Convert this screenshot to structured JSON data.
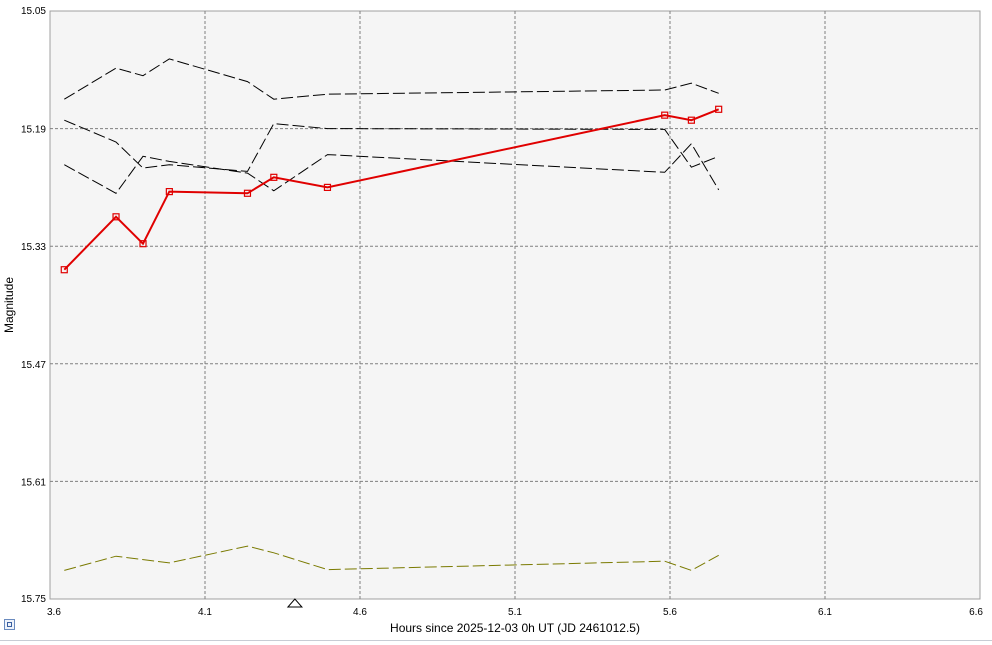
{
  "chart_data": {
    "type": "line",
    "xlabel": "Hours since 2025-12-03 0h UT (JD 2461012.5)",
    "ylabel": "Magnitude",
    "xlim": [
      3.6,
      6.6
    ],
    "ylim": [
      15.05,
      15.75
    ],
    "y_inverted": true,
    "x_ticks": [
      "3.6",
      "4.1",
      "4.6",
      "5.1",
      "5.6",
      "6.1",
      "6.6"
    ],
    "y_ticks": [
      "15.05",
      "15.19",
      "15.33",
      "15.47",
      "15.61",
      "15.75"
    ],
    "grid": true,
    "marker_x": 4.39,
    "colors": {
      "target": "#e00000",
      "comparison": "#000000",
      "check": "#7a7a00",
      "background": "#f5f5f5",
      "grid": "#808080"
    },
    "series": [
      {
        "style": "target",
        "x": [
          3.646,
          3.813,
          3.9,
          3.985,
          4.237,
          4.322,
          4.495,
          5.583,
          5.669,
          5.757
        ],
        "y": [
          15.358,
          15.295,
          15.327,
          15.265,
          15.267,
          15.248,
          15.26,
          15.174,
          15.18,
          15.167
        ]
      },
      {
        "style": "comparison",
        "x": [
          3.646,
          3.813,
          3.9,
          3.985,
          4.237,
          4.322,
          4.495,
          5.583,
          5.669,
          5.757
        ],
        "y": [
          15.155,
          15.118,
          15.127,
          15.107,
          15.134,
          15.155,
          15.149,
          15.144,
          15.136,
          15.148
        ]
      },
      {
        "style": "comparison",
        "x": [
          3.646,
          3.813,
          3.9,
          3.985,
          4.237,
          4.322,
          4.495,
          5.583,
          5.669,
          5.757
        ],
        "y": [
          15.18,
          15.206,
          15.237,
          15.233,
          15.241,
          15.184,
          15.19,
          15.191,
          15.236,
          15.223
        ]
      },
      {
        "style": "comparison",
        "x": [
          3.646,
          3.813,
          3.9,
          3.985,
          4.237,
          4.322,
          4.495,
          5.583,
          5.669,
          5.757
        ],
        "y": [
          15.233,
          15.267,
          15.223,
          15.229,
          15.243,
          15.264,
          15.221,
          15.242,
          15.208,
          15.263
        ]
      },
      {
        "style": "check",
        "x": [
          3.646,
          3.813,
          3.985,
          4.237,
          4.322,
          4.495,
          5.583,
          5.669,
          5.757
        ],
        "y": [
          15.716,
          15.699,
          15.707,
          15.687,
          15.695,
          15.715,
          15.705,
          15.716,
          15.698
        ]
      }
    ]
  }
}
